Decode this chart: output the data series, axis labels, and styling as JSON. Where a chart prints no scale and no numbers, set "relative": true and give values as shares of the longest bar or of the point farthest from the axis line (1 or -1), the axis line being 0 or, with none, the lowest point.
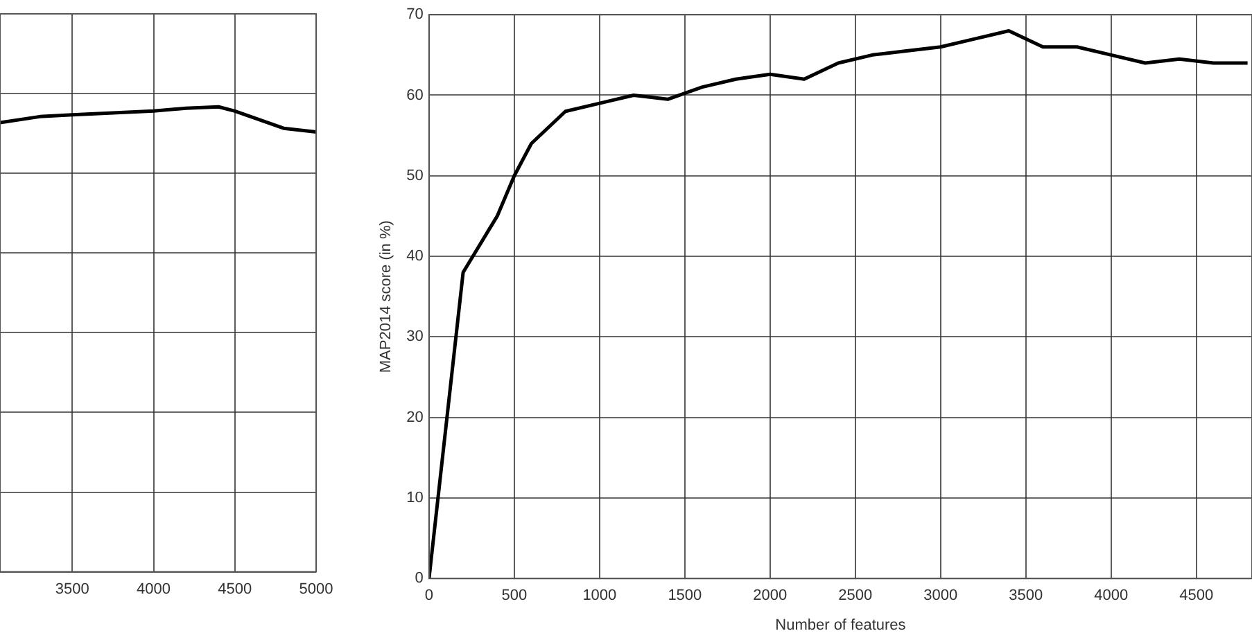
{
  "chart_data": [
    {
      "type": "line",
      "relative": true,
      "x": [
        3055,
        3300,
        3500,
        4000,
        4200,
        4400,
        4500,
        4800,
        5000
      ],
      "xlim": [
        3055,
        5000
      ],
      "xticks": [
        3500,
        4000,
        4500,
        5000
      ],
      "grid": true,
      "tick_labels": "x",
      "series": [
        {
          "color": "#000000",
          "values": [
            0.966,
            0.979,
            0.983,
            0.991,
            0.997,
            1,
            0.991,
            0.954,
            0.946
          ]
        }
      ]
    },
    {
      "type": "line",
      "xlabel": "Number of features",
      "ylabel": "MAP2014 score (in %)",
      "x": [
        0,
        200,
        400,
        500,
        600,
        800,
        1000,
        1200,
        1400,
        1600,
        1800,
        2000,
        2200,
        2400,
        2600,
        2800,
        3000,
        3200,
        3400,
        3600,
        3800,
        4000,
        4200,
        4400,
        4600,
        4800
      ],
      "xlim": [
        0,
        4826
      ],
      "xticks": [
        0,
        500,
        1000,
        1500,
        2000,
        2500,
        3000,
        3500,
        4000,
        4500
      ],
      "ylim": [
        0,
        70
      ],
      "yticks": [
        0,
        10,
        20,
        30,
        40,
        50,
        60,
        70
      ],
      "grid": true,
      "series": [
        {
          "color": "#000000",
          "values": [
            0,
            38,
            45,
            50,
            54,
            58,
            59,
            60,
            59.5,
            61,
            62,
            62.6,
            62,
            64,
            65,
            65.5,
            66,
            67,
            68,
            66,
            66,
            65,
            64,
            64.5,
            64,
            64
          ]
        }
      ]
    }
  ]
}
